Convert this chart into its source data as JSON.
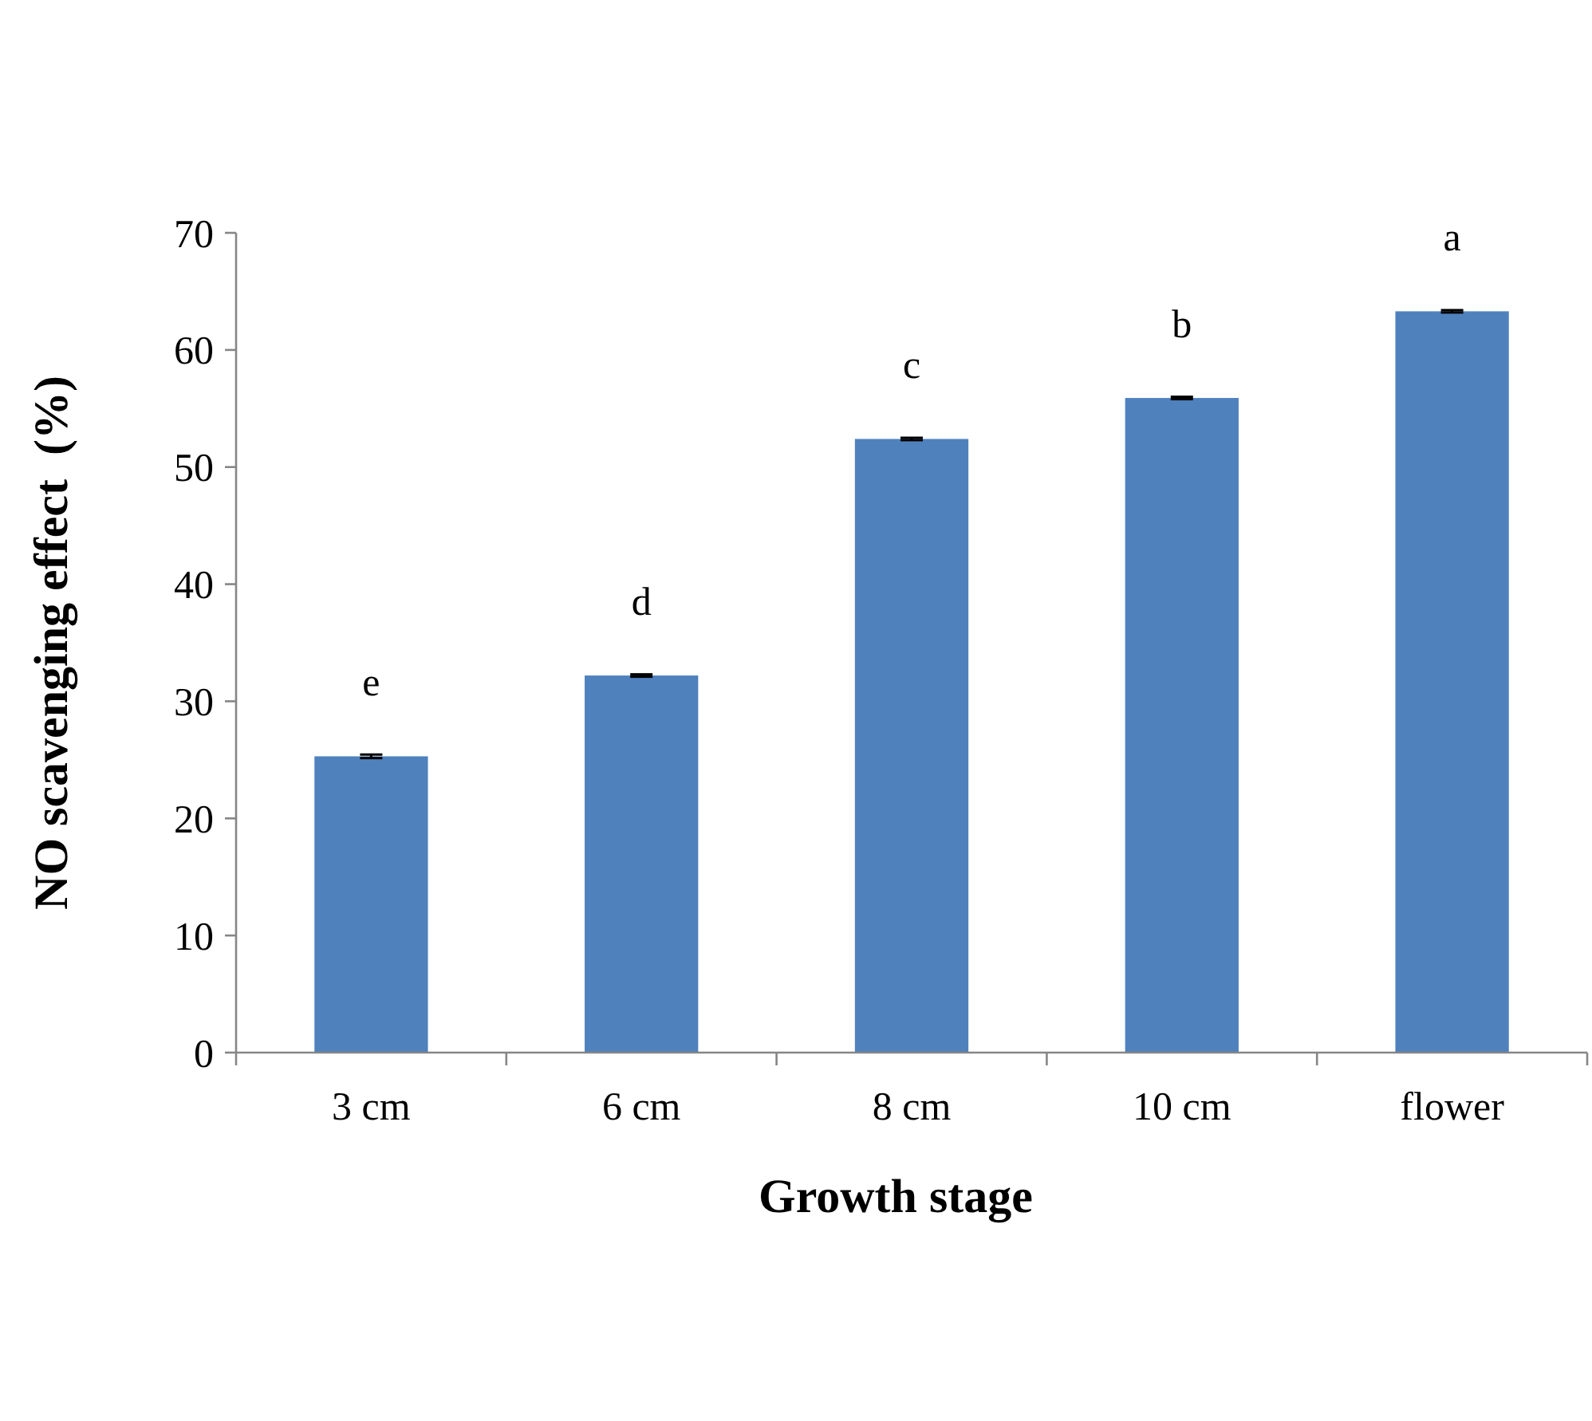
{
  "chart_data": {
    "type": "bar",
    "xlabel": "Growth stage",
    "ylabel": "NO scavenging effect  (%)",
    "categories": [
      "3 cm",
      "6 cm",
      "8 cm",
      "10 cm",
      "flower"
    ],
    "values": [
      25.3,
      32.2,
      52.4,
      55.9,
      63.3
    ],
    "errors": [
      0.15,
      0.1,
      0.1,
      0.1,
      0.1
    ],
    "color": "#4f81bd",
    "ylim": [
      0,
      70
    ],
    "yticks": [
      0,
      10,
      20,
      30,
      40,
      50,
      60,
      70
    ],
    "grid": false,
    "annotations": [
      "e",
      "d",
      "c",
      "b",
      "a"
    ]
  }
}
